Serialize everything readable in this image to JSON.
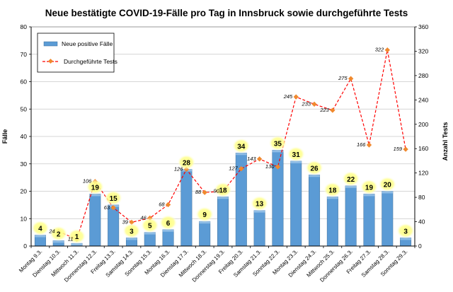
{
  "chart_data": {
    "type": "bar",
    "title": "Neue bestätigte COVID-19-Fälle pro Tag in Innsbruck sowie durchgeführte Tests",
    "ylabel": "Fälle",
    "y2label": "Anzahl Tests",
    "ylim": [
      0,
      80
    ],
    "y2lim": [
      0,
      360
    ],
    "yticks": [
      0,
      10,
      20,
      30,
      40,
      50,
      60,
      70,
      80
    ],
    "y2ticks": [
      0,
      40,
      80,
      120,
      160,
      200,
      240,
      280,
      320,
      360
    ],
    "grid": true,
    "legend_position": "top-left",
    "categories": [
      "Montag 9.3.",
      "Dienstag 10.3.",
      "Mittwoch 11.3.",
      "Donnerstag 12.3.",
      "Freitag 13.3.",
      "Samstag 14.3.",
      "Sonntag 15.3.",
      "Montag 16.3.",
      "Dienstag 17.3.",
      "Mittwoch 18.3.",
      "Donnerstag 19.3.",
      "Freitag 20.3.",
      "Samstag 21.3.",
      "Sonntag 22.3.",
      "Montag 23.3.",
      "Dienstag 24.3.",
      "Mittwoch 25.3.",
      "Donnerstag 26.3.",
      "Freitag 27.3.",
      "Samstag 28.3.",
      "Sonntag 29.3."
    ],
    "series": [
      {
        "name": "Neue positive Fälle",
        "type": "bar",
        "axis": "left",
        "color": "#5b9bd5",
        "values": [
          4,
          2,
          1,
          19,
          15,
          3,
          5,
          6,
          28,
          9,
          18,
          34,
          13,
          35,
          31,
          26,
          18,
          22,
          19,
          20,
          3
        ]
      },
      {
        "name": "Durchgeführte Tests",
        "type": "line",
        "axis": "right",
        "color": "#ff0000",
        "marker_color": "#f0892e",
        "values": [
          null,
          24,
          11,
          106,
          63,
          39,
          46,
          68,
          126,
          88,
          90,
          127,
          143,
          130,
          245,
          233,
          223,
          275,
          166,
          322,
          159
        ]
      }
    ]
  }
}
